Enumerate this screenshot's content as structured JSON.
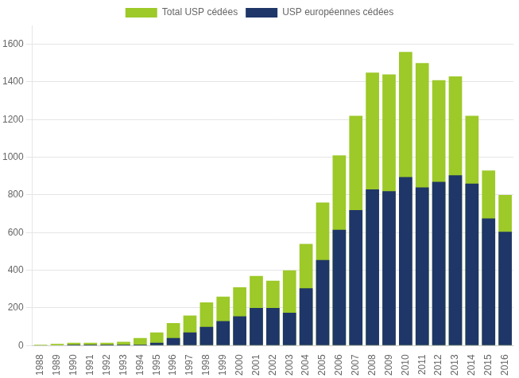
{
  "chart_data": {
    "type": "bar",
    "categories": [
      "1988",
      "1989",
      "1990",
      "1991",
      "1992",
      "1993",
      "1994",
      "1995",
      "1996",
      "1997",
      "1998",
      "1999",
      "2000",
      "2001",
      "2002",
      "2003",
      "2004",
      "2005",
      "2006",
      "2007",
      "2008",
      "2009",
      "2010",
      "2011",
      "2012",
      "2013",
      "2014",
      "2015",
      "2016"
    ],
    "series": [
      {
        "name": "Total USP cédées",
        "color": "#9dc929",
        "values": [
          5,
          10,
          15,
          15,
          15,
          20,
          40,
          70,
          120,
          160,
          230,
          260,
          310,
          370,
          345,
          400,
          540,
          760,
          1010,
          1220,
          1450,
          1440,
          1560,
          1500,
          1410,
          1430,
          1220,
          930,
          800
        ]
      },
      {
        "name": "USP européennes cédées",
        "color": "#1f3668",
        "values": [
          0,
          0,
          5,
          5,
          5,
          5,
          5,
          15,
          40,
          70,
          100,
          130,
          155,
          200,
          200,
          175,
          305,
          455,
          615,
          720,
          830,
          820,
          895,
          840,
          870,
          905,
          860,
          675,
          605
        ]
      }
    ],
    "ylim": [
      0,
      1700
    ],
    "yticks": [
      0,
      200,
      400,
      600,
      800,
      1000,
      1200,
      1400,
      1600
    ],
    "grid": true,
    "legend": "top"
  }
}
